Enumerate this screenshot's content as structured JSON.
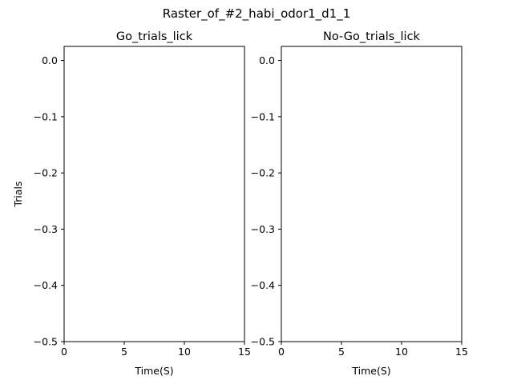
{
  "figure": {
    "suptitle": "Raster_of_#2_habi_odor1_d1_1"
  },
  "chart_data": [
    {
      "type": "scatter",
      "title": "Go_trials_lick",
      "xlabel": "Time(S)",
      "ylabel": "Trials",
      "xlim": [
        0,
        15
      ],
      "ylim": [
        -0.5,
        0.025
      ],
      "xticks": [
        0,
        5,
        10,
        15
      ],
      "xtick_labels": [
        "0",
        "5",
        "10",
        "15"
      ],
      "yticks": [
        0.0,
        -0.1,
        -0.2,
        -0.3,
        -0.4,
        -0.5
      ],
      "ytick_labels": [
        "0.0",
        "−0.1",
        "−0.2",
        "−0.3",
        "−0.4",
        "−0.5"
      ],
      "series": [],
      "grid": false,
      "legend": "none"
    },
    {
      "type": "scatter",
      "title": "No-Go_trials_lick",
      "xlabel": "Time(S)",
      "ylabel": "",
      "xlim": [
        0,
        15
      ],
      "ylim": [
        -0.5,
        0.025
      ],
      "xticks": [
        0,
        5,
        10,
        15
      ],
      "xtick_labels": [
        "0",
        "5",
        "10",
        "15"
      ],
      "yticks": [
        0.0,
        -0.1,
        -0.2,
        -0.3,
        -0.4,
        -0.5
      ],
      "ytick_labels": [
        "0.0",
        "−0.1",
        "−0.2",
        "−0.3",
        "−0.4",
        "−0.5"
      ],
      "series": [],
      "grid": false,
      "legend": "none"
    }
  ]
}
